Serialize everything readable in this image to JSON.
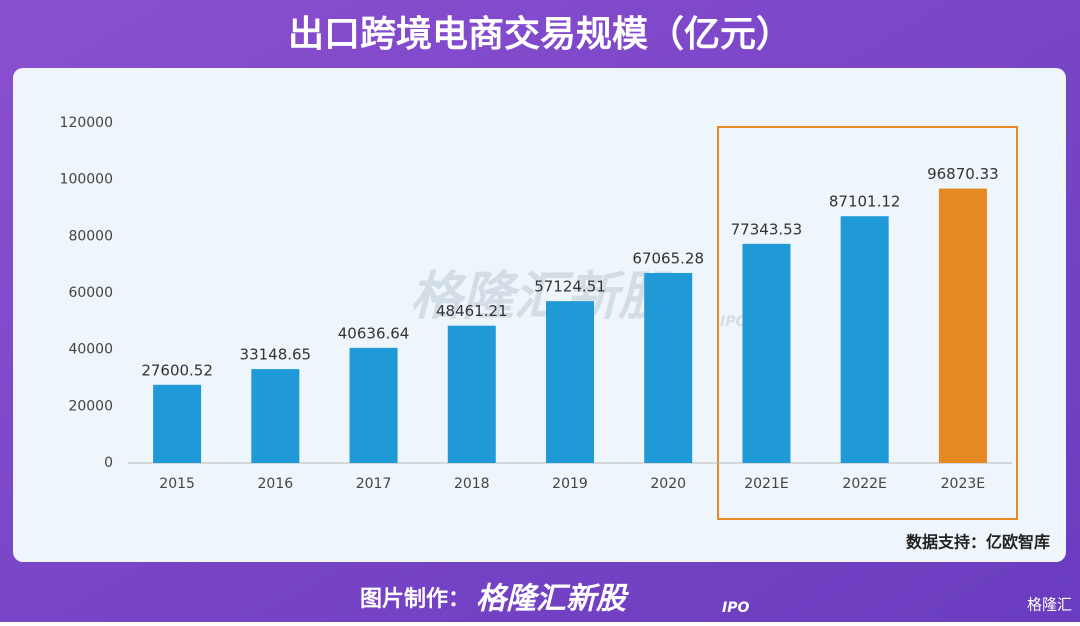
{
  "header": {
    "title": "出口跨境电商交易规模（亿元）"
  },
  "chart_data": {
    "type": "bar",
    "categories": [
      "2015",
      "2016",
      "2017",
      "2018",
      "2019",
      "2020",
      "2021E",
      "2022E",
      "2023E"
    ],
    "values": [
      27600.52,
      33148.65,
      40636.64,
      48461.21,
      57124.51,
      67065.28,
      77343.53,
      87101.12,
      96870.33
    ],
    "colors": [
      "#1f9ad6",
      "#1f9ad6",
      "#1f9ad6",
      "#1f9ad6",
      "#1f9ad6",
      "#1f9ad6",
      "#1f9ad6",
      "#1f9ad6",
      "#e58a23"
    ],
    "ylim": [
      0,
      120000
    ],
    "yticks": [
      0,
      20000,
      40000,
      60000,
      80000,
      100000,
      120000
    ],
    "grid": false,
    "source": "数据支持：亿欧智库"
  },
  "watermark": {
    "text": "格隆汇新股",
    "sub": "IPO"
  },
  "footer": {
    "label": "图片制作：",
    "brand": "格隆汇新股",
    "brand_sub": "IPO",
    "corner": "格隆汇"
  }
}
